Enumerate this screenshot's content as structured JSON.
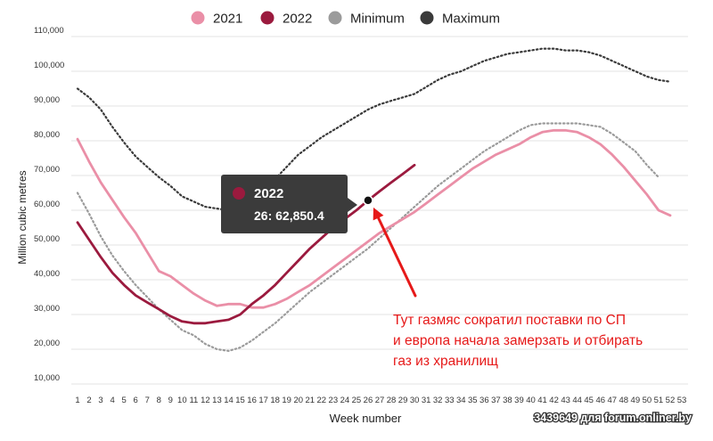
{
  "chart_data": {
    "type": "line",
    "xlabel": "Week number",
    "ylabel": "Million cubic metres",
    "ylim": [
      10000,
      110000
    ],
    "yticks": [
      10000,
      20000,
      30000,
      40000,
      50000,
      60000,
      70000,
      80000,
      90000,
      100000,
      110000
    ],
    "ytick_labels": [
      "10,000",
      "20,000",
      "30,000",
      "40,000",
      "50,000",
      "60,000",
      "70,000",
      "80,000",
      "90,000",
      "100,000",
      "110,000"
    ],
    "xticks": [
      1,
      2,
      3,
      4,
      5,
      6,
      7,
      8,
      9,
      10,
      11,
      12,
      13,
      14,
      15,
      16,
      17,
      18,
      19,
      20,
      21,
      22,
      23,
      24,
      25,
      26,
      27,
      28,
      29,
      30,
      31,
      32,
      33,
      34,
      35,
      36,
      37,
      38,
      39,
      40,
      41,
      42,
      43,
      44,
      45,
      46,
      47,
      48,
      49,
      50,
      51,
      52,
      53
    ],
    "grid": "horizontal",
    "legend_position": "top",
    "series": [
      {
        "name": "2021",
        "color": "#ea8fa7",
        "style": "solid",
        "x": [
          1,
          2,
          3,
          4,
          5,
          6,
          7,
          8,
          9,
          10,
          11,
          12,
          13,
          14,
          15,
          16,
          17,
          18,
          19,
          20,
          21,
          22,
          23,
          24,
          25,
          26,
          27,
          28,
          29,
          30,
          31,
          32,
          33,
          34,
          35,
          36,
          37,
          38,
          39,
          40,
          41,
          42,
          43,
          44,
          45,
          46,
          47,
          48,
          49,
          50,
          51,
          52,
          53
        ],
        "values": [
          80500,
          74000,
          68000,
          63000,
          58000,
          53500,
          48000,
          42500,
          41000,
          38500,
          36000,
          34000,
          32500,
          33000,
          33000,
          32000,
          32000,
          33000,
          34500,
          36500,
          38500,
          41000,
          43500,
          46000,
          48500,
          51000,
          53500,
          55500,
          57500,
          59500,
          62000,
          64500,
          67000,
          69500,
          72000,
          74000,
          76000,
          77500,
          79000,
          81000,
          82500,
          83000,
          83000,
          82500,
          81000,
          79000,
          76000,
          72500,
          68500,
          64500,
          60000,
          58500,
          null
        ]
      },
      {
        "name": "2022",
        "color": "#9b1a3e",
        "style": "solid",
        "x": [
          1,
          2,
          3,
          4,
          5,
          6,
          7,
          8,
          9,
          10,
          11,
          12,
          13,
          14,
          15,
          16,
          17,
          18,
          19,
          20,
          21,
          22,
          23,
          24,
          25,
          26,
          27,
          28,
          29,
          30
        ],
        "values": [
          56500,
          51500,
          46500,
          42000,
          38500,
          35500,
          33500,
          31500,
          29500,
          28000,
          27500,
          27500,
          28000,
          28500,
          30000,
          33000,
          35500,
          38500,
          42000,
          45500,
          49000,
          52000,
          55000,
          57500,
          60000,
          62850,
          65500,
          68000,
          70500,
          73000
        ]
      },
      {
        "name": "Minimum",
        "color": "#9b9b9b",
        "style": "dotted",
        "x": [
          1,
          2,
          3,
          4,
          5,
          6,
          7,
          8,
          9,
          10,
          11,
          12,
          13,
          14,
          15,
          16,
          17,
          18,
          19,
          20,
          21,
          22,
          23,
          24,
          25,
          26,
          27,
          28,
          29,
          30,
          31,
          32,
          33,
          34,
          35,
          36,
          37,
          38,
          39,
          40,
          41,
          42,
          43,
          44,
          45,
          46,
          47,
          48,
          49,
          50,
          51,
          52,
          53
        ],
        "values": [
          65000,
          59000,
          52500,
          47000,
          42500,
          38500,
          35000,
          31500,
          28500,
          25500,
          24000,
          21500,
          20000,
          19500,
          20500,
          22500,
          25000,
          27500,
          30500,
          33500,
          36500,
          39000,
          41500,
          44000,
          46500,
          49000,
          52000,
          55000,
          58000,
          61000,
          64000,
          67000,
          69500,
          72000,
          74500,
          77000,
          79000,
          81000,
          83000,
          84500,
          85000,
          85000,
          85000,
          85000,
          84500,
          84000,
          82000,
          79500,
          77000,
          73000,
          69500,
          null,
          null
        ]
      },
      {
        "name": "Maximum",
        "color": "#3a3a3a",
        "style": "dotted",
        "x": [
          1,
          2,
          3,
          4,
          5,
          6,
          7,
          8,
          9,
          10,
          11,
          12,
          13,
          14,
          15,
          16,
          17,
          18,
          19,
          20,
          21,
          22,
          23,
          24,
          25,
          26,
          27,
          28,
          29,
          30,
          31,
          32,
          33,
          34,
          35,
          36,
          37,
          38,
          39,
          40,
          41,
          42,
          43,
          44,
          45,
          46,
          47,
          48,
          49,
          50,
          51,
          52,
          53
        ],
        "values": [
          95000,
          92500,
          89000,
          84000,
          79500,
          75500,
          72500,
          69500,
          67000,
          64000,
          62500,
          61000,
          60500,
          60000,
          61500,
          63500,
          66500,
          69000,
          72500,
          76000,
          78500,
          81000,
          83000,
          85000,
          87000,
          89000,
          90500,
          91500,
          92500,
          93500,
          95500,
          97500,
          99000,
          100000,
          101500,
          103000,
          104000,
          105000,
          105500,
          106000,
          106500,
          106500,
          106000,
          106000,
          105500,
          104500,
          103000,
          101500,
          100000,
          98500,
          97500,
          97000,
          null
        ]
      }
    ],
    "tooltip": {
      "series": "2022",
      "x": 26,
      "y": 62850.4,
      "title": "2022",
      "text": "26: 62,850.4"
    },
    "annotation": {
      "lines": [
        "Тут газмяс сократил поставки по СП",
        "и европа начала замерзать и отбирать",
        "газ из хранилищ"
      ],
      "color": "#e61919",
      "arrow_to": {
        "x": 26,
        "y": 62850.4
      }
    },
    "watermark": "3439649 для forum.onliner.by"
  }
}
